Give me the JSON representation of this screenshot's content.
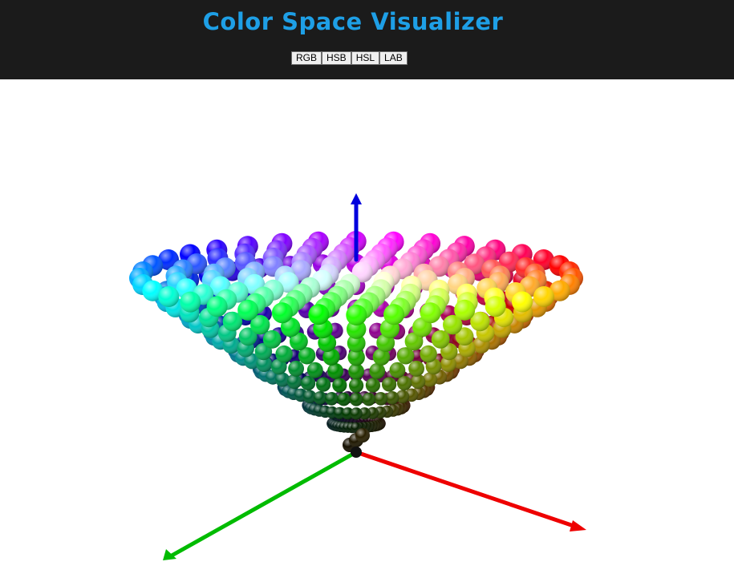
{
  "app": {
    "title": "Color Space Visualizer"
  },
  "toolbar": {
    "modes": [
      {
        "label": "RGB"
      },
      {
        "label": "HSB"
      },
      {
        "label": "HSL"
      },
      {
        "label": "LAB"
      }
    ]
  },
  "scene": {
    "current_mode": "HSB",
    "axes": {
      "up_color": "#0000dd",
      "right_color": "#ee0000",
      "left_color": "#00bb00"
    },
    "colors": {
      "header_bg": "#1b1b1b",
      "title": "#1e9fe6"
    }
  }
}
